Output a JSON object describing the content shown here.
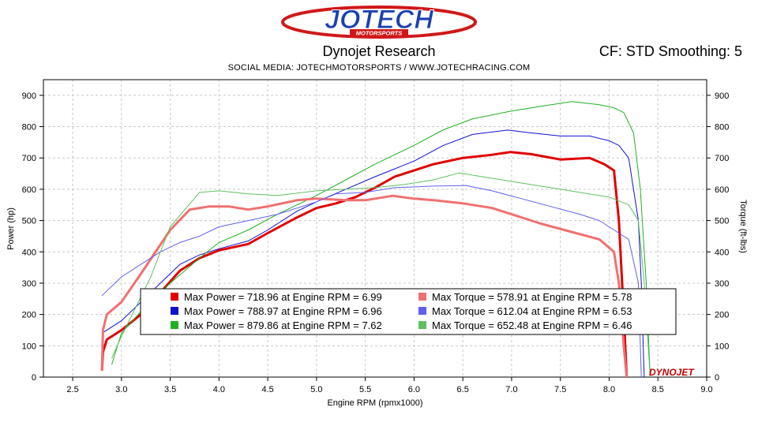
{
  "header": {
    "logo_text": "JOTECH",
    "logo_subtext": "MOTORSPORTS",
    "title": "Dynojet Research",
    "correction": "CF: STD Smoothing: 5",
    "social": "SOCIAL MEDIA: JOTECHMOTORSPORTS    /    WWW.JOTECHRACING.COM"
  },
  "watermark": "DYNOJET",
  "chart_data": {
    "type": "line",
    "xlabel": "Engine RPM (rpmx1000)",
    "ylabel_left": "Power (hp)",
    "ylabel_right": "Torque (ft-lbs)",
    "xlim": [
      2.2,
      9.0
    ],
    "ylim": [
      0,
      950
    ],
    "xticks": [
      "2.5",
      "3.0",
      "3.5",
      "4.0",
      "4.5",
      "5.0",
      "5.5",
      "6.0",
      "6.5",
      "7.0",
      "7.5",
      "8.0",
      "8.5",
      "9.0"
    ],
    "yticks": [
      "0",
      "100",
      "200",
      "300",
      "400",
      "500",
      "600",
      "700",
      "800",
      "900"
    ],
    "grid": true,
    "series": [
      {
        "kind": "power",
        "color": "#e00000",
        "width": 3,
        "points": [
          [
            2.8,
            20
          ],
          [
            2.81,
            80
          ],
          [
            2.85,
            120
          ],
          [
            3.0,
            150
          ],
          [
            3.2,
            200
          ],
          [
            3.4,
            270
          ],
          [
            3.6,
            340
          ],
          [
            3.8,
            380
          ],
          [
            4.0,
            405
          ],
          [
            4.3,
            425
          ],
          [
            4.5,
            460
          ],
          [
            4.8,
            510
          ],
          [
            5.0,
            540
          ],
          [
            5.2,
            555
          ],
          [
            5.4,
            575
          ],
          [
            5.6,
            605
          ],
          [
            5.8,
            640
          ],
          [
            6.0,
            660
          ],
          [
            6.2,
            680
          ],
          [
            6.5,
            700
          ],
          [
            6.8,
            710
          ],
          [
            6.99,
            719
          ],
          [
            7.2,
            712
          ],
          [
            7.5,
            695
          ],
          [
            7.8,
            700
          ],
          [
            7.95,
            680
          ],
          [
            8.05,
            660
          ],
          [
            8.1,
            500
          ],
          [
            8.15,
            200
          ],
          [
            8.18,
            0
          ]
        ]
      },
      {
        "kind": "power",
        "color": "#1010d0",
        "width": 1,
        "points": [
          [
            2.8,
            140
          ],
          [
            3.0,
            180
          ],
          [
            3.2,
            240
          ],
          [
            3.4,
            300
          ],
          [
            3.6,
            360
          ],
          [
            3.8,
            390
          ],
          [
            4.0,
            410
          ],
          [
            4.3,
            435
          ],
          [
            4.5,
            470
          ],
          [
            4.8,
            530
          ],
          [
            5.0,
            560
          ],
          [
            5.3,
            600
          ],
          [
            5.6,
            640
          ],
          [
            5.8,
            665
          ],
          [
            6.0,
            690
          ],
          [
            6.3,
            740
          ],
          [
            6.6,
            775
          ],
          [
            6.96,
            789
          ],
          [
            7.2,
            780
          ],
          [
            7.5,
            770
          ],
          [
            7.8,
            770
          ],
          [
            8.0,
            755
          ],
          [
            8.1,
            740
          ],
          [
            8.2,
            700
          ],
          [
            8.3,
            500
          ],
          [
            8.33,
            300
          ],
          [
            8.36,
            0
          ]
        ]
      },
      {
        "kind": "power",
        "color": "#20b020",
        "width": 1,
        "points": [
          [
            2.9,
            40
          ],
          [
            3.0,
            140
          ],
          [
            3.2,
            210
          ],
          [
            3.5,
            300
          ],
          [
            3.8,
            380
          ],
          [
            4.0,
            430
          ],
          [
            4.3,
            470
          ],
          [
            4.6,
            520
          ],
          [
            5.0,
            580
          ],
          [
            5.3,
            630
          ],
          [
            5.6,
            680
          ],
          [
            5.8,
            710
          ],
          [
            6.0,
            740
          ],
          [
            6.3,
            790
          ],
          [
            6.6,
            825
          ],
          [
            7.0,
            850
          ],
          [
            7.3,
            865
          ],
          [
            7.62,
            880
          ],
          [
            7.9,
            870
          ],
          [
            8.05,
            860
          ],
          [
            8.15,
            845
          ],
          [
            8.25,
            780
          ],
          [
            8.32,
            600
          ],
          [
            8.38,
            300
          ],
          [
            8.42,
            0
          ]
        ]
      },
      {
        "kind": "torque",
        "color": "#f07070",
        "width": 3,
        "points": [
          [
            2.8,
            20
          ],
          [
            2.81,
            150
          ],
          [
            2.85,
            200
          ],
          [
            3.0,
            240
          ],
          [
            3.2,
            330
          ],
          [
            3.5,
            470
          ],
          [
            3.7,
            535
          ],
          [
            3.9,
            545
          ],
          [
            4.1,
            545
          ],
          [
            4.3,
            535
          ],
          [
            4.5,
            545
          ],
          [
            4.8,
            565
          ],
          [
            5.0,
            570
          ],
          [
            5.3,
            565
          ],
          [
            5.5,
            565
          ],
          [
            5.78,
            579
          ],
          [
            6.0,
            570
          ],
          [
            6.2,
            565
          ],
          [
            6.5,
            555
          ],
          [
            6.8,
            540
          ],
          [
            7.0,
            520
          ],
          [
            7.3,
            490
          ],
          [
            7.6,
            465
          ],
          [
            7.9,
            440
          ],
          [
            8.05,
            400
          ],
          [
            8.1,
            300
          ],
          [
            8.15,
            100
          ],
          [
            8.18,
            0
          ]
        ]
      },
      {
        "kind": "torque",
        "color": "#6060f0",
        "width": 1,
        "points": [
          [
            2.8,
            260
          ],
          [
            3.0,
            320
          ],
          [
            3.2,
            360
          ],
          [
            3.4,
            400
          ],
          [
            3.6,
            430
          ],
          [
            3.8,
            450
          ],
          [
            4.0,
            480
          ],
          [
            4.3,
            500
          ],
          [
            4.6,
            520
          ],
          [
            5.0,
            560
          ],
          [
            5.2,
            585
          ],
          [
            5.5,
            590
          ],
          [
            5.8,
            605
          ],
          [
            6.2,
            610
          ],
          [
            6.53,
            612
          ],
          [
            6.8,
            595
          ],
          [
            7.1,
            570
          ],
          [
            7.4,
            545
          ],
          [
            7.7,
            520
          ],
          [
            7.9,
            500
          ],
          [
            8.05,
            470
          ],
          [
            8.2,
            440
          ],
          [
            8.3,
            300
          ],
          [
            8.33,
            0
          ]
        ]
      },
      {
        "kind": "torque",
        "color": "#60c060",
        "width": 1,
        "points": [
          [
            2.9,
            60
          ],
          [
            3.0,
            130
          ],
          [
            3.3,
            320
          ],
          [
            3.5,
            480
          ],
          [
            3.8,
            590
          ],
          [
            4.0,
            595
          ],
          [
            4.3,
            585
          ],
          [
            4.6,
            580
          ],
          [
            5.0,
            595
          ],
          [
            5.3,
            600
          ],
          [
            5.6,
            605
          ],
          [
            5.9,
            615
          ],
          [
            6.2,
            630
          ],
          [
            6.46,
            652
          ],
          [
            6.8,
            635
          ],
          [
            7.1,
            620
          ],
          [
            7.4,
            605
          ],
          [
            7.7,
            590
          ],
          [
            8.0,
            575
          ],
          [
            8.2,
            550
          ],
          [
            8.3,
            500
          ],
          [
            8.36,
            300
          ],
          [
            8.42,
            0
          ]
        ]
      }
    ],
    "legend": [
      {
        "color": "#e00000",
        "text": "Max Power = 718.96 at Engine RPM = 6.99"
      },
      {
        "color": "#f07070",
        "text": "Max Torque = 578.91 at Engine RPM = 5.78"
      },
      {
        "color": "#1010d0",
        "text": "Max Power = 788.97 at Engine RPM = 6.96"
      },
      {
        "color": "#6060f0",
        "text": "Max Torque = 612.04 at Engine RPM = 6.53"
      },
      {
        "color": "#20b020",
        "text": "Max Power = 879.86 at Engine RPM = 7.62"
      },
      {
        "color": "#60c060",
        "text": "Max Torque = 652.48 at Engine RPM = 6.46"
      }
    ]
  }
}
